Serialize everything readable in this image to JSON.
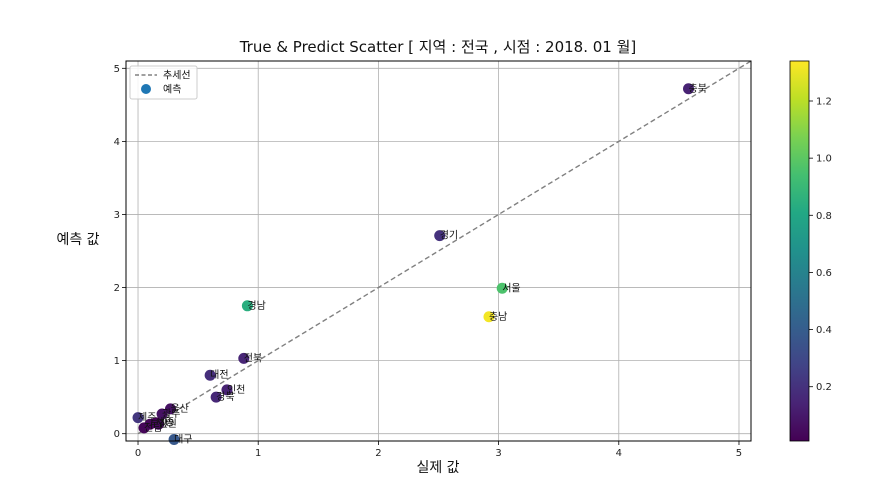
{
  "chart_data": {
    "type": "scatter",
    "title": "True & Predict Scatter  [ 지역 : 전국 , 시점 : 2018. 01 월]",
    "xlabel": "실제 값",
    "ylabel": "예측 값",
    "xlim": [
      -0.1,
      5.1
    ],
    "ylim": [
      -0.1,
      5.1
    ],
    "xticks": [
      0,
      1,
      2,
      3,
      4,
      5
    ],
    "yticks": [
      0,
      1,
      2,
      3,
      4,
      5
    ],
    "grid": true,
    "legend": {
      "position": "top-left",
      "entries": [
        {
          "label": "추세선",
          "kind": "dashed-line",
          "color": "#808080"
        },
        {
          "label": "예측",
          "kind": "marker",
          "color": "#1f77b4"
        }
      ]
    },
    "trend_line": {
      "x": [
        0,
        5.1
      ],
      "y": [
        0,
        5.1
      ],
      "color": "#808080"
    },
    "colorbar": {
      "cmap": "viridis",
      "range": [
        0.01,
        1.34
      ],
      "ticks": [
        0.2,
        0.4,
        0.6,
        0.8,
        1.0,
        1.2
      ],
      "tick_labels": [
        "0.2",
        "0.4",
        "0.6",
        "0.8",
        "1.0",
        "1.2"
      ]
    },
    "points": [
      {
        "label": "충북",
        "x": 4.58,
        "y": 4.72,
        "c": 0.14
      },
      {
        "label": "경기",
        "x": 2.51,
        "y": 2.71,
        "c": 0.2
      },
      {
        "label": "서울",
        "x": 3.03,
        "y": 1.99,
        "c": 0.96
      },
      {
        "label": "충남",
        "x": 2.92,
        "y": 1.6,
        "c": 1.32
      },
      {
        "label": "경남",
        "x": 0.91,
        "y": 1.75,
        "c": 0.84
      },
      {
        "label": "전북",
        "x": 0.88,
        "y": 1.03,
        "c": 0.15
      },
      {
        "label": "대전",
        "x": 0.6,
        "y": 0.8,
        "c": 0.19
      },
      {
        "label": "인천",
        "x": 0.74,
        "y": 0.6,
        "c": 0.14
      },
      {
        "label": "경북",
        "x": 0.65,
        "y": 0.5,
        "c": 0.16
      },
      {
        "label": "울산",
        "x": 0.27,
        "y": 0.34,
        "c": 0.07
      },
      {
        "label": "광주",
        "x": 0.2,
        "y": 0.27,
        "c": 0.07
      },
      {
        "label": "제주",
        "x": 0.0,
        "y": 0.22,
        "c": 0.22
      },
      {
        "label": "세종",
        "x": 0.15,
        "y": 0.15,
        "c": 0.01
      },
      {
        "label": "부산",
        "x": 0.1,
        "y": 0.13,
        "c": 0.03
      },
      {
        "label": "전남",
        "x": 0.05,
        "y": 0.08,
        "c": 0.03
      },
      {
        "label": "강원",
        "x": 0.17,
        "y": 0.13,
        "c": 0.04
      },
      {
        "label": "대구",
        "x": 0.3,
        "y": -0.08,
        "c": 0.38
      }
    ]
  }
}
